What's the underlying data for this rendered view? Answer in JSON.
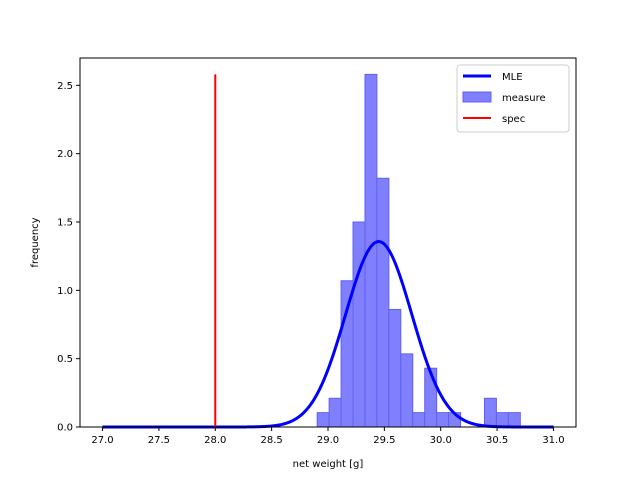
{
  "chart_data": {
    "type": "bar",
    "xlabel": "net weight [g]",
    "ylabel": "frequency",
    "xlim": [
      26.8,
      31.2
    ],
    "ylim": [
      0,
      2.7
    ],
    "xticks": [
      27.0,
      27.5,
      28.0,
      28.5,
      29.0,
      29.5,
      30.0,
      30.5,
      31.0
    ],
    "xtick_labels": [
      "27.0",
      "27.5",
      "28.0",
      "28.5",
      "29.0",
      "29.5",
      "30.0",
      "30.5",
      "31.0"
    ],
    "yticks": [
      0.0,
      0.5,
      1.0,
      1.5,
      2.0,
      2.5
    ],
    "ytick_labels": [
      "0.0",
      "0.5",
      "1.0",
      "1.5",
      "2.0",
      "2.5"
    ],
    "grid": false,
    "legend": {
      "placement": "top-right",
      "entries": [
        {
          "label": "MLE",
          "type": "line",
          "color": "#0000ff"
        },
        {
          "label": "measure",
          "type": "bar",
          "color": "#0000ff"
        },
        {
          "label": "spec",
          "type": "line",
          "color": "#ff0000"
        }
      ]
    },
    "series": [
      {
        "name": "measure",
        "type": "histogram",
        "color": "#0000ff",
        "bin_width": 0.106,
        "bins": [
          {
            "x0": 28.904,
            "height": 0.105
          },
          {
            "x0": 29.01,
            "height": 0.21
          },
          {
            "x0": 29.116,
            "height": 1.07
          },
          {
            "x0": 29.222,
            "height": 1.5
          },
          {
            "x0": 29.328,
            "height": 2.58
          },
          {
            "x0": 29.434,
            "height": 1.82
          },
          {
            "x0": 29.54,
            "height": 0.86
          },
          {
            "x0": 29.646,
            "height": 0.535
          },
          {
            "x0": 29.752,
            "height": 0.105
          },
          {
            "x0": 29.858,
            "height": 0.43
          },
          {
            "x0": 29.964,
            "height": 0.105
          },
          {
            "x0": 30.07,
            "height": 0.105
          },
          {
            "x0": 30.176,
            "height": 0.0
          },
          {
            "x0": 30.282,
            "height": 0.0
          },
          {
            "x0": 30.388,
            "height": 0.21
          },
          {
            "x0": 30.494,
            "height": 0.105
          },
          {
            "x0": 30.6,
            "height": 0.105
          }
        ]
      },
      {
        "name": "MLE",
        "type": "line",
        "color": "#0000ff",
        "distribution": "normal",
        "mean": 29.45,
        "std": 0.294,
        "x_range": [
          27.0,
          31.0
        ]
      },
      {
        "name": "spec",
        "type": "vline",
        "color": "#ff0000",
        "x": 28.0,
        "y_range": [
          0,
          2.58
        ]
      }
    ]
  }
}
